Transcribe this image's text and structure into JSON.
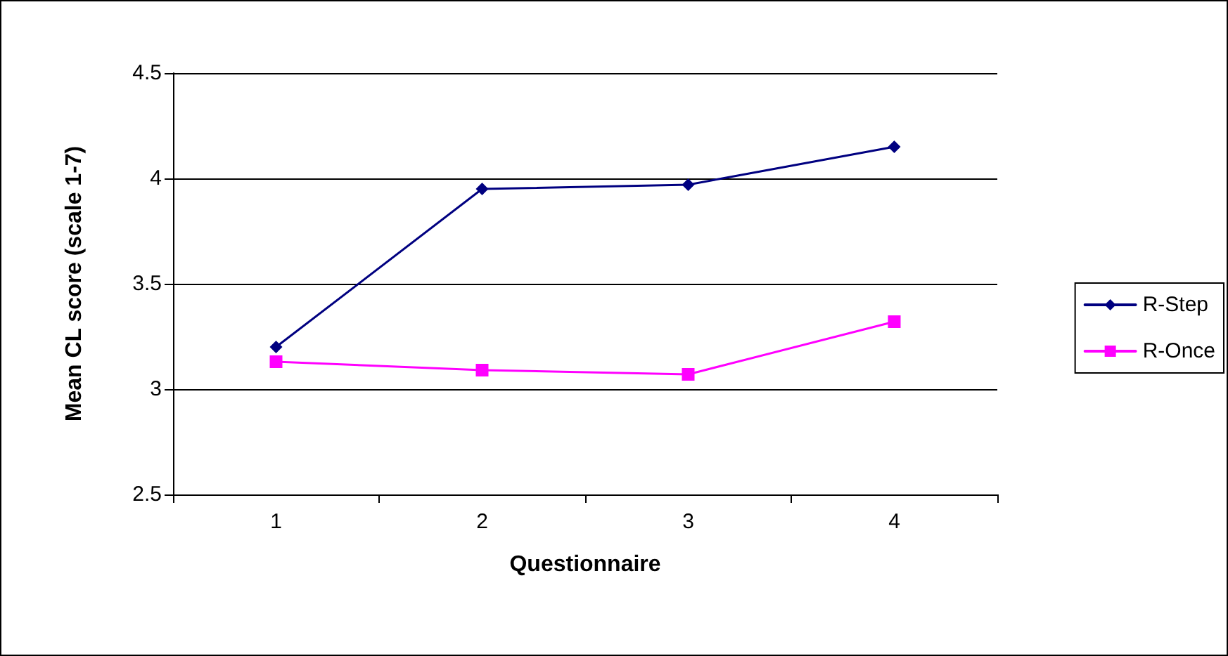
{
  "chart_data": {
    "type": "line",
    "xlabel": "Questionnaire",
    "ylabel": "Mean CL score (scale 1-7)",
    "categories": [
      "1",
      "2",
      "3",
      "4"
    ],
    "series": [
      {
        "name": "R-Step",
        "color": "#000080",
        "marker": "diamond",
        "values": [
          3.2,
          3.95,
          3.97,
          4.15
        ]
      },
      {
        "name": "R-Once",
        "color": "#ff00ff",
        "marker": "square",
        "values": [
          3.13,
          3.09,
          3.07,
          3.32
        ]
      }
    ],
    "ylim": [
      2.5,
      4.5
    ],
    "yticks": [
      2.5,
      3,
      3.5,
      4,
      4.5
    ],
    "grid": "y",
    "legend": "right",
    "line_style": "solid"
  }
}
